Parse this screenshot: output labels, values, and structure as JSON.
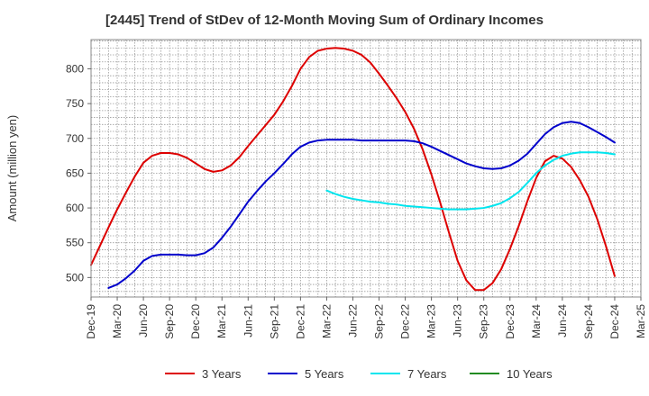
{
  "chart_data": {
    "type": "line",
    "title": "[2445]  Trend of StDev of 12-Month Moving Sum of Ordinary Incomes",
    "xlabel": "",
    "ylabel": "Amount (million yen)",
    "x_ticks": [
      "Dec-19",
      "Mar-20",
      "Jun-20",
      "Sep-20",
      "Dec-20",
      "Mar-21",
      "Jun-21",
      "Sep-21",
      "Dec-21",
      "Mar-22",
      "Jun-22",
      "Sep-22",
      "Dec-22",
      "Mar-23",
      "Jun-23",
      "Sep-23",
      "Dec-23",
      "Mar-24",
      "Jun-24",
      "Sep-24",
      "Dec-24",
      "Mar-25"
    ],
    "y_ticks": [
      500,
      550,
      600,
      650,
      700,
      750,
      800
    ],
    "ylim": [
      472,
      842
    ],
    "x_range": [
      "2019-12",
      "2025-03"
    ],
    "grid": true,
    "legend_position": "bottom",
    "series": [
      {
        "name": "3 Years",
        "color": "#dd0000",
        "points": [
          [
            "2019-12",
            518
          ],
          [
            "2020-01",
            545
          ],
          [
            "2020-02",
            572
          ],
          [
            "2020-03",
            598
          ],
          [
            "2020-04",
            622
          ],
          [
            "2020-05",
            645
          ],
          [
            "2020-06",
            665
          ],
          [
            "2020-07",
            675
          ],
          [
            "2020-08",
            679
          ],
          [
            "2020-09",
            679
          ],
          [
            "2020-10",
            677
          ],
          [
            "2020-11",
            672
          ],
          [
            "2020-12",
            664
          ],
          [
            "2021-01",
            656
          ],
          [
            "2021-02",
            652
          ],
          [
            "2021-03",
            654
          ],
          [
            "2021-04",
            661
          ],
          [
            "2021-05",
            673
          ],
          [
            "2021-06",
            689
          ],
          [
            "2021-07",
            704
          ],
          [
            "2021-08",
            719
          ],
          [
            "2021-09",
            734
          ],
          [
            "2021-10",
            753
          ],
          [
            "2021-11",
            775
          ],
          [
            "2021-12",
            800
          ],
          [
            "2022-01",
            817
          ],
          [
            "2022-02",
            826
          ],
          [
            "2022-03",
            829
          ],
          [
            "2022-04",
            830
          ],
          [
            "2022-05",
            829
          ],
          [
            "2022-06",
            826
          ],
          [
            "2022-07",
            820
          ],
          [
            "2022-08",
            809
          ],
          [
            "2022-09",
            793
          ],
          [
            "2022-10",
            776
          ],
          [
            "2022-11",
            758
          ],
          [
            "2022-12",
            738
          ],
          [
            "2023-01",
            714
          ],
          [
            "2023-02",
            684
          ],
          [
            "2023-03",
            648
          ],
          [
            "2023-04",
            608
          ],
          [
            "2023-05",
            565
          ],
          [
            "2023-06",
            524
          ],
          [
            "2023-07",
            496
          ],
          [
            "2023-08",
            482
          ],
          [
            "2023-09",
            482
          ],
          [
            "2023-10",
            492
          ],
          [
            "2023-11",
            512
          ],
          [
            "2023-12",
            541
          ],
          [
            "2024-01",
            574
          ],
          [
            "2024-02",
            610
          ],
          [
            "2024-03",
            643
          ],
          [
            "2024-04",
            667
          ],
          [
            "2024-05",
            675
          ],
          [
            "2024-06",
            671
          ],
          [
            "2024-07",
            659
          ],
          [
            "2024-08",
            640
          ],
          [
            "2024-09",
            616
          ],
          [
            "2024-10",
            584
          ],
          [
            "2024-11",
            545
          ],
          [
            "2024-12",
            502
          ]
        ]
      },
      {
        "name": "5 Years",
        "color": "#0000cc",
        "points": [
          [
            "2020-02",
            485
          ],
          [
            "2020-03",
            490
          ],
          [
            "2020-04",
            499
          ],
          [
            "2020-05",
            510
          ],
          [
            "2020-06",
            524
          ],
          [
            "2020-07",
            531
          ],
          [
            "2020-08",
            533
          ],
          [
            "2020-09",
            533
          ],
          [
            "2020-10",
            533
          ],
          [
            "2020-11",
            532
          ],
          [
            "2020-12",
            532
          ],
          [
            "2021-01",
            535
          ],
          [
            "2021-02",
            543
          ],
          [
            "2021-03",
            557
          ],
          [
            "2021-04",
            573
          ],
          [
            "2021-05",
            591
          ],
          [
            "2021-06",
            609
          ],
          [
            "2021-07",
            624
          ],
          [
            "2021-08",
            638
          ],
          [
            "2021-09",
            650
          ],
          [
            "2021-10",
            663
          ],
          [
            "2021-11",
            677
          ],
          [
            "2021-12",
            688
          ],
          [
            "2022-01",
            694
          ],
          [
            "2022-02",
            697
          ],
          [
            "2022-03",
            698
          ],
          [
            "2022-04",
            698
          ],
          [
            "2022-05",
            698
          ],
          [
            "2022-06",
            698
          ],
          [
            "2022-07",
            697
          ],
          [
            "2022-08",
            697
          ],
          [
            "2022-09",
            697
          ],
          [
            "2022-10",
            697
          ],
          [
            "2022-11",
            697
          ],
          [
            "2022-12",
            697
          ],
          [
            "2023-01",
            696
          ],
          [
            "2023-02",
            693
          ],
          [
            "2023-03",
            688
          ],
          [
            "2023-04",
            682
          ],
          [
            "2023-05",
            676
          ],
          [
            "2023-06",
            670
          ],
          [
            "2023-07",
            664
          ],
          [
            "2023-08",
            660
          ],
          [
            "2023-09",
            657
          ],
          [
            "2023-10",
            656
          ],
          [
            "2023-11",
            657
          ],
          [
            "2023-12",
            661
          ],
          [
            "2024-01",
            668
          ],
          [
            "2024-02",
            678
          ],
          [
            "2024-03",
            692
          ],
          [
            "2024-04",
            706
          ],
          [
            "2024-05",
            716
          ],
          [
            "2024-06",
            722
          ],
          [
            "2024-07",
            724
          ],
          [
            "2024-08",
            722
          ],
          [
            "2024-09",
            716
          ],
          [
            "2024-10",
            709
          ],
          [
            "2024-11",
            702
          ],
          [
            "2024-12",
            694
          ]
        ]
      },
      {
        "name": "7 Years",
        "color": "#00e5ee",
        "points": [
          [
            "2022-03",
            625
          ],
          [
            "2022-04",
            620
          ],
          [
            "2022-05",
            616
          ],
          [
            "2022-06",
            613
          ],
          [
            "2022-07",
            611
          ],
          [
            "2022-08",
            609
          ],
          [
            "2022-09",
            608
          ],
          [
            "2022-10",
            606
          ],
          [
            "2022-11",
            605
          ],
          [
            "2022-12",
            603
          ],
          [
            "2023-01",
            602
          ],
          [
            "2023-02",
            601
          ],
          [
            "2023-03",
            600
          ],
          [
            "2023-04",
            599
          ],
          [
            "2023-05",
            598
          ],
          [
            "2023-06",
            598
          ],
          [
            "2023-07",
            598
          ],
          [
            "2023-08",
            599
          ],
          [
            "2023-09",
            600
          ],
          [
            "2023-10",
            603
          ],
          [
            "2023-11",
            607
          ],
          [
            "2023-12",
            614
          ],
          [
            "2024-01",
            623
          ],
          [
            "2024-02",
            636
          ],
          [
            "2024-03",
            650
          ],
          [
            "2024-04",
            661
          ],
          [
            "2024-05",
            669
          ],
          [
            "2024-06",
            675
          ],
          [
            "2024-07",
            678
          ],
          [
            "2024-08",
            680
          ],
          [
            "2024-09",
            680
          ],
          [
            "2024-10",
            680
          ],
          [
            "2024-11",
            679
          ],
          [
            "2024-12",
            677
          ]
        ]
      },
      {
        "name": "10 Years",
        "color": "#228b22",
        "points": []
      }
    ]
  }
}
